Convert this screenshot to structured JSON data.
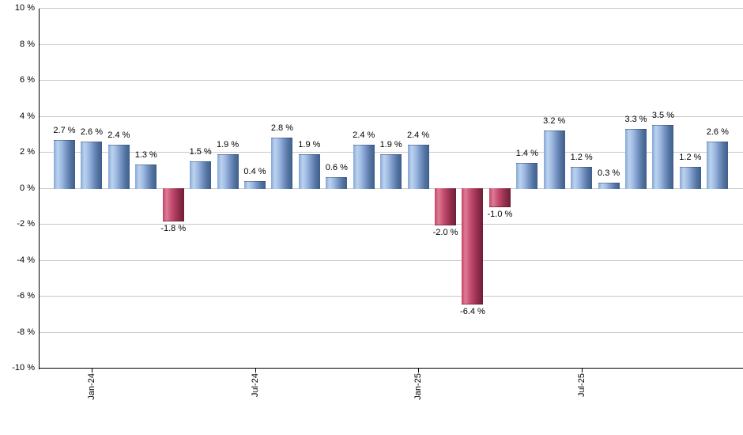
{
  "chart_data": {
    "type": "bar",
    "title": "",
    "description": "Monthly percentage returns bar chart",
    "values": [
      2.7,
      2.6,
      2.4,
      1.3,
      -1.8,
      1.5,
      1.9,
      0.4,
      2.8,
      1.9,
      0.6,
      2.4,
      1.9,
      2.4,
      -2.0,
      -6.4,
      -1.0,
      1.4,
      3.2,
      1.2,
      0.3,
      3.3,
      3.5,
      1.2,
      2.6
    ],
    "bar_value_labels": [
      "2.7 %",
      "2.6 %",
      "2.4 %",
      "1.3 %",
      "-1.8 %",
      "1.5 %",
      "1.9 %",
      "0.4 %",
      "2.8 %",
      "1.9 %",
      "0.6 %",
      "2.4 %",
      "1.9 %",
      "2.4 %",
      "-2.0 %",
      "-6.4 %",
      "-1.0 %",
      "1.4 %",
      "3.2 %",
      "1.2 %",
      "0.3 %",
      "3.3 %",
      "3.5 %",
      "1.2 %",
      "2.6 %"
    ],
    "x_axis": {
      "tick_labels": [
        "Jan-24",
        "Jul-24",
        "Jan-25",
        "Jul-25"
      ],
      "tick_bar_indices": [
        1,
        7,
        13,
        19
      ]
    },
    "y_axis": {
      "min": -10,
      "max": 10,
      "step": 2,
      "tick_labels": [
        "10 %",
        "8 %",
        "6 %",
        "4 %",
        "2 %",
        "0 %",
        "-2 %",
        "-4 %",
        "-6 %",
        "-8 %",
        "-10 %"
      ],
      "tick_values": [
        10,
        8,
        6,
        4,
        2,
        0,
        -2,
        -4,
        -6,
        -8,
        -10
      ]
    },
    "grid": true,
    "legend": "none",
    "colors": {
      "background": "#ffffff",
      "gridline": "#c9c9c9",
      "axis": "#000000",
      "label_text": "#000000",
      "positive_gradient_stops": [
        "#84a7d8",
        "#bdd3ee",
        "#9db9e1",
        "#7492c3",
        "#54749f",
        "#3e5d8d"
      ],
      "negative_gradient_stops": [
        "#c84263",
        "#dd7d96",
        "#c85276",
        "#a93a5b",
        "#8a2a47",
        "#6f1d37"
      ],
      "gradient_stop_positions": [
        "0%",
        "18%",
        "38%",
        "60%",
        "80%",
        "100%"
      ]
    }
  }
}
